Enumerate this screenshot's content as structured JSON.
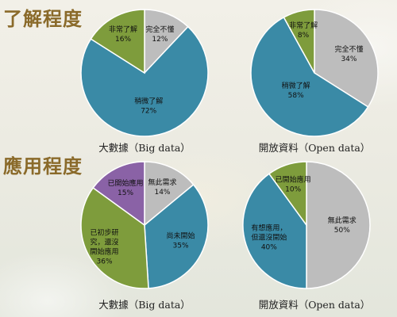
{
  "sections": [
    {
      "title": "了解程度"
    },
    {
      "title": "應用程度"
    }
  ],
  "chart_data": [
    {
      "type": "pie",
      "caption": "大數據（Big data）",
      "slices": [
        {
          "label": "完全不懂",
          "value": 12,
          "display": "12%",
          "color": "#bdbdbd"
        },
        {
          "label": "稍微了解",
          "value": 72,
          "display": "72%",
          "color": "#3a8aa6"
        },
        {
          "label": "非常了解",
          "value": 16,
          "display": "16%",
          "color": "#7e9c3c"
        }
      ]
    },
    {
      "type": "pie",
      "caption": "開放資料（Open data）",
      "slices": [
        {
          "label": "完全不懂",
          "value": 34,
          "display": "34%",
          "color": "#bdbdbd"
        },
        {
          "label": "稍微了解",
          "value": 58,
          "display": "58%",
          "color": "#3a8aa6"
        },
        {
          "label": "非常了解",
          "value": 8,
          "display": "8%",
          "color": "#7e9c3c"
        }
      ]
    },
    {
      "type": "pie",
      "caption": "大數據（Big data）",
      "slices": [
        {
          "label": "無此需求",
          "value": 14,
          "display": "14%",
          "color": "#bdbdbd"
        },
        {
          "label": "尚未開始",
          "value": 35,
          "display": "35%",
          "color": "#3a8aa6"
        },
        {
          "label": "已初步研究，還沒開始應用",
          "value": 36,
          "display": "36%",
          "color": "#7e9c3c"
        },
        {
          "label": "已開始應用",
          "value": 15,
          "display": "15%",
          "color": "#8a62a6"
        }
      ]
    },
    {
      "type": "pie",
      "caption": "開放資料（Open data）",
      "slices": [
        {
          "label": "無此需求",
          "value": 50,
          "display": "50%",
          "color": "#bdbdbd"
        },
        {
          "label": "有想應用，但還沒開始",
          "value": 40,
          "display": "40%",
          "color": "#3a8aa6"
        },
        {
          "label": "已開始應用",
          "value": 10,
          "display": "10%",
          "color": "#7e9c3c"
        }
      ]
    }
  ]
}
